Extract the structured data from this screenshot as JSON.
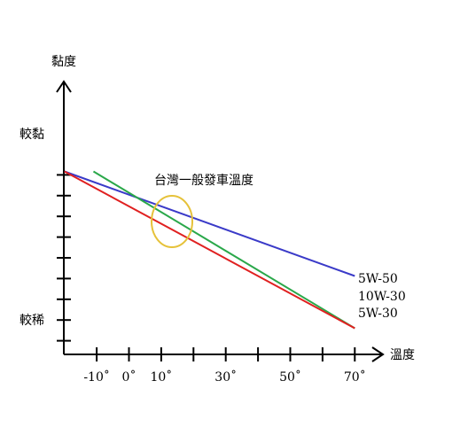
{
  "chart_data": {
    "type": "line",
    "ylabel": "黏度",
    "xlabel": "溫度",
    "y_tick_labels": {
      "high": "較黏",
      "low": "較稀"
    },
    "x_tick_labels": [
      "-10˚",
      "0˚",
      "10˚",
      "30˚",
      "50˚",
      "70˚"
    ],
    "x_ticks_values": [
      -10,
      0,
      10,
      20,
      30,
      40,
      50,
      60,
      70
    ],
    "series": [
      {
        "name": "5W-50",
        "color": "#3a3ac8",
        "x": [
          -20,
          70
        ],
        "y": [
          7.0,
          3.0
        ]
      },
      {
        "name": "10W-30",
        "color": "#2aa84a",
        "x": [
          -11,
          70
        ],
        "y": [
          7.0,
          1.0
        ]
      },
      {
        "name": "5W-30",
        "color": "#e02020",
        "x": [
          -20,
          70
        ],
        "y": [
          7.0,
          1.0
        ]
      }
    ],
    "annotation": {
      "text": "台灣一般發車溫度",
      "color": "#d4a017",
      "x": 10,
      "y": 5.4
    }
  }
}
